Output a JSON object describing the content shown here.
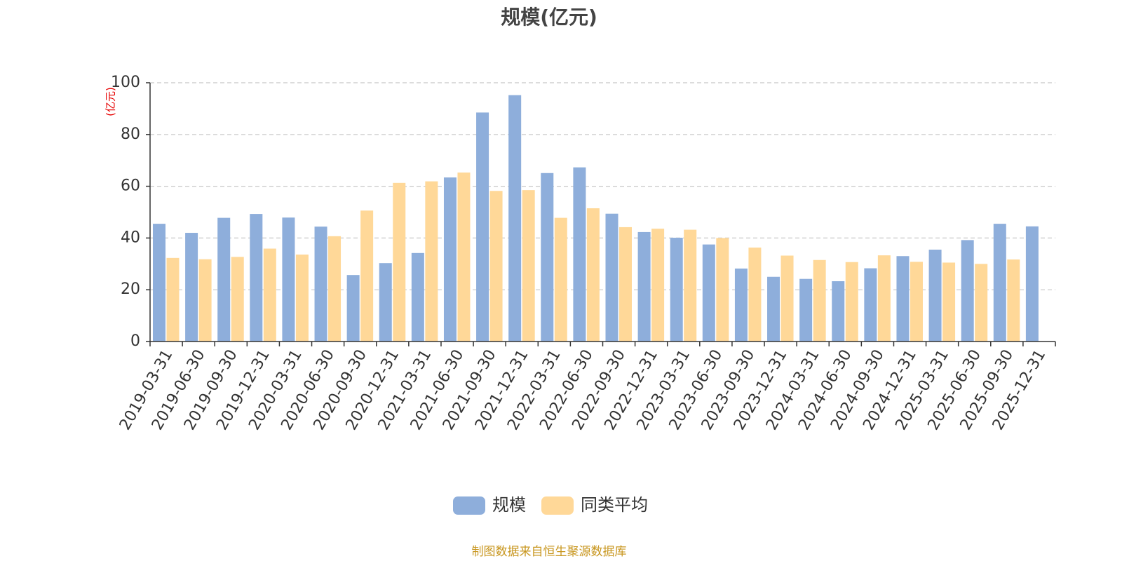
{
  "chart_data": {
    "type": "bar",
    "title": "规模(亿元)",
    "ylabel": "(亿元)",
    "xlabel": "",
    "ylim": [
      0,
      100
    ],
    "yticks": [
      0,
      20,
      40,
      60,
      80,
      100
    ],
    "grid": true,
    "legend_position": "bottom-center",
    "categories": [
      "2019-03-31",
      "2019-06-30",
      "2019-09-30",
      "2019-12-31",
      "2020-03-31",
      "2020-06-30",
      "2020-09-30",
      "2020-12-31",
      "2021-03-31",
      "2021-06-30",
      "2021-09-30",
      "2021-12-31",
      "2022-03-31",
      "2022-06-30",
      "2022-09-30",
      "2022-12-31",
      "2023-03-31",
      "2023-06-30",
      "2023-09-30",
      "2023-12-31",
      "2024-03-31",
      "2024-06-30",
      "2024-09-30",
      "2024-12-31",
      "2025-03-31",
      "2025-06-30",
      "2025-09-30",
      "2025-12-31"
    ],
    "series": [
      {
        "name": "规模",
        "color": "#8eaedb",
        "values": [
          45.5,
          42.0,
          47.8,
          49.3,
          47.9,
          44.4,
          25.7,
          30.3,
          34.2,
          63.4,
          88.5,
          95.2,
          65.1,
          67.3,
          49.4,
          42.3,
          40.1,
          37.5,
          28.2,
          25.0,
          24.2,
          23.3,
          28.3,
          33.0,
          35.5,
          39.2,
          45.5,
          44.5
        ]
      },
      {
        "name": "同类平均",
        "color": "#ffd898",
        "values": [
          32.3,
          31.8,
          32.7,
          35.9,
          33.6,
          40.7,
          50.6,
          61.3,
          61.9,
          65.3,
          58.2,
          58.5,
          47.8,
          51.5,
          44.2,
          43.6,
          43.2,
          40.0,
          36.3,
          33.2,
          31.5,
          30.7,
          33.3,
          30.8,
          30.5,
          30.0,
          31.7,
          null
        ]
      }
    ]
  },
  "footer": {
    "source_text": "制图数据来自恒生聚源数据库",
    "source_color": "#c8961e"
  }
}
